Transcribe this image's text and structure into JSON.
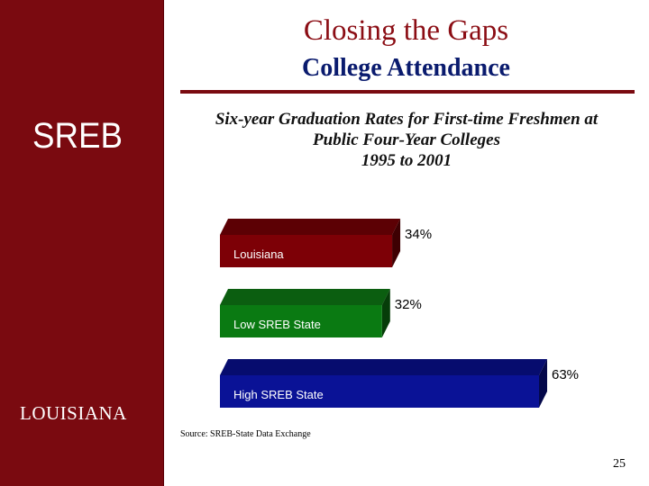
{
  "slide": {
    "title": "Closing the Gaps",
    "subtitle": "College Attendance",
    "logo_text": "SREB",
    "state_label": "LOUISIANA",
    "source": "Source: SREB-State Data Exchange",
    "page_number": "25"
  },
  "colors": {
    "sidebar": "#7a0a10",
    "title": "#8b0d14",
    "subtitle": "#0a1b6e"
  },
  "chart_data": {
    "type": "bar",
    "orientation": "horizontal",
    "title_lines": [
      "Six-year Graduation Rates for First-time Freshmen  at",
      "Public Four-Year Colleges",
      "1995 to 2001"
    ],
    "categories": [
      "Louisiana",
      "Low SREB State",
      "High SREB State"
    ],
    "values": [
      34,
      32,
      63
    ],
    "value_labels": [
      "34%",
      "32%",
      "63%"
    ],
    "colors": [
      "#7d0006",
      "#0a7a12",
      "#0a1296"
    ],
    "top_colors": [
      "#5c0004",
      "#0b5e10",
      "#060c6e"
    ],
    "side_colors": [
      "#3e0002",
      "#063d09",
      "#04084a"
    ],
    "xlim": [
      0,
      63
    ],
    "grid": false,
    "legend": "none"
  }
}
